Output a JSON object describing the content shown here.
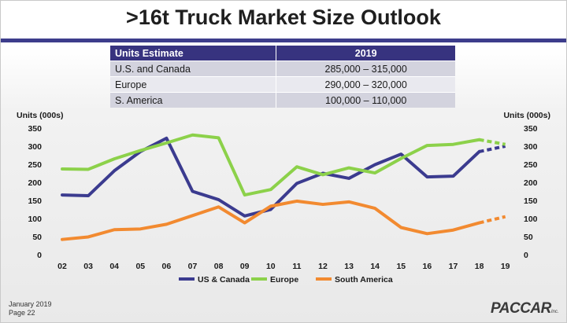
{
  "title": ">16t Truck Market Size Outlook",
  "table": {
    "headers": [
      "Units Estimate",
      "2019"
    ],
    "rows": [
      [
        "U.S. and Canada",
        "285,000 – 315,000"
      ],
      [
        "Europe",
        "290,000 – 320,000"
      ],
      [
        "S. America",
        "100,000 – 110,000"
      ]
    ]
  },
  "chart_data": {
    "type": "line",
    "ylabel_left": "Units (000s)",
    "ylabel_right": "Units (000s)",
    "ylim": [
      0,
      350
    ],
    "yticks": [
      0,
      50,
      100,
      150,
      200,
      250,
      300,
      350
    ],
    "categories": [
      "02",
      "03",
      "04",
      "05",
      "06",
      "07",
      "08",
      "09",
      "10",
      "11",
      "12",
      "13",
      "14",
      "15",
      "16",
      "17",
      "18",
      "19"
    ],
    "series": [
      {
        "name": "US & Canada",
        "color": "#3b3b8f",
        "values": [
          165,
          163,
          232,
          285,
          322,
          175,
          152,
          107,
          125,
          197,
          225,
          211,
          249,
          278,
          215,
          217,
          285,
          300
        ],
        "projected_from": 16
      },
      {
        "name": "Europe",
        "color": "#8cd14a",
        "values": [
          237,
          236,
          265,
          288,
          309,
          331,
          323,
          165,
          180,
          243,
          221,
          240,
          226,
          266,
          302,
          305,
          318,
          305
        ],
        "projected_from": 16
      },
      {
        "name": "South America",
        "color": "#f28a30",
        "values": [
          42,
          49,
          69,
          71,
          84,
          108,
          132,
          88,
          134,
          148,
          139,
          146,
          128,
          75,
          58,
          68,
          88,
          105
        ],
        "projected_from": 16
      }
    ],
    "legend_position": "bottom",
    "grid": false
  },
  "footer": {
    "date": "January 2019",
    "page": "Page 22"
  },
  "logo": {
    "text": "PACCAR",
    "suffix": "Inc."
  }
}
